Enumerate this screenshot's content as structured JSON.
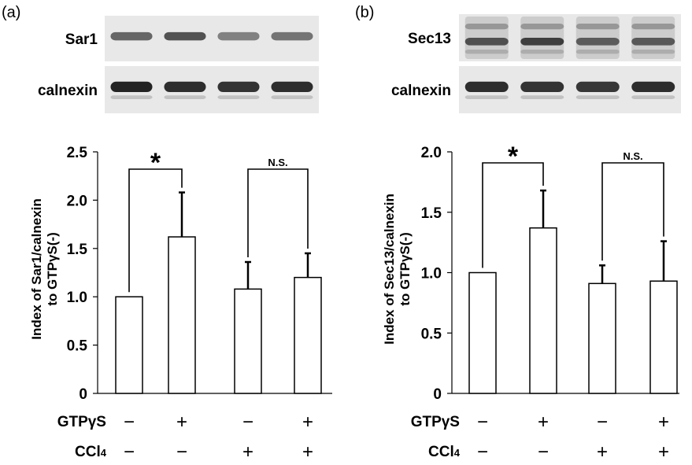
{
  "panels": [
    {
      "letter": "(a)",
      "blots": [
        {
          "label": "Sar1",
          "intensities": [
            0.78,
            0.9,
            0.62,
            0.7
          ],
          "style": "thin"
        },
        {
          "label": "calnexin",
          "intensities": [
            1.0,
            0.95,
            0.92,
            0.95
          ],
          "style": "thick"
        }
      ],
      "significance": [
        {
          "pair": [
            0,
            1
          ],
          "label": "*"
        },
        {
          "pair": [
            2,
            3
          ],
          "label": "N.S."
        }
      ]
    },
    {
      "letter": "(b)",
      "blots": [
        {
          "label": "Sec13",
          "intensities": [
            0.85,
            0.95,
            0.78,
            0.8
          ],
          "style": "smear"
        },
        {
          "label": "calnexin",
          "intensities": [
            0.95,
            0.92,
            0.9,
            0.95
          ],
          "style": "thick"
        }
      ],
      "significance": [
        {
          "pair": [
            0,
            1
          ],
          "label": "*"
        },
        {
          "pair": [
            2,
            3
          ],
          "label": "N.S."
        }
      ]
    }
  ],
  "conditions": {
    "rows": [
      {
        "label": "GTPγS",
        "values": [
          "−",
          "+",
          "−",
          "+"
        ]
      },
      {
        "label": "CCl",
        "label_sub": "4",
        "values": [
          "−",
          "−",
          "+",
          "+"
        ]
      }
    ]
  },
  "chart_data": [
    {
      "type": "bar",
      "categories": [
        "GTPγS − / CCl4 −",
        "GTPγS + / CCl4 −",
        "GTPγS − / CCl4 +",
        "GTPγS + / CCl4 +"
      ],
      "values": [
        1.0,
        1.62,
        1.08,
        1.2
      ],
      "errors": [
        0.0,
        0.46,
        0.28,
        0.25
      ],
      "ylabel": "Index of Sar1/calnexin to GTPγS(-)",
      "ylabel_lines": [
        "Index of Sar1/calnexin",
        "to GTPγS(-)"
      ],
      "ylim": [
        0,
        2.5
      ],
      "yticks": [
        0,
        0.5,
        1.0,
        1.5,
        2.0,
        2.5
      ],
      "ytick_labels": [
        "0",
        "0.5",
        "1.0",
        "1.5",
        "2.0",
        "2.5"
      ],
      "grid": false,
      "bar_color": "#ffffff",
      "edge_color": "#000000"
    },
    {
      "type": "bar",
      "categories": [
        "GTPγS − / CCl4 −",
        "GTPγS + / CCl4 −",
        "GTPγS − / CCl4 +",
        "GTPγS + / CCl4 +"
      ],
      "values": [
        1.0,
        1.37,
        0.91,
        0.93
      ],
      "errors": [
        0.0,
        0.31,
        0.15,
        0.33
      ],
      "ylabel": "Index of Sec13/calnexin to GTPγS(-)",
      "ylabel_lines": [
        "Index of Sec13/calnexin",
        "to GTPγS(-)"
      ],
      "ylim": [
        0,
        2.0
      ],
      "yticks": [
        0,
        0.5,
        1.0,
        1.5,
        2.0
      ],
      "ytick_labels": [
        "0",
        "0.5",
        "1.0",
        "1.5",
        "2.0"
      ],
      "grid": false,
      "bar_color": "#ffffff",
      "edge_color": "#000000"
    }
  ]
}
